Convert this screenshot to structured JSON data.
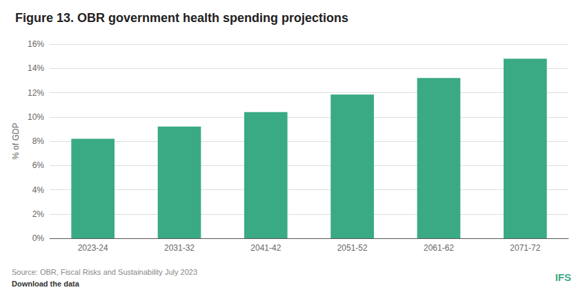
{
  "chart_data": {
    "type": "bar",
    "title": "Figure 13. OBR government health spending projections",
    "categories": [
      "2023-24",
      "2031-32",
      "2041-42",
      "2051-52",
      "2061-62",
      "2071-72"
    ],
    "values": [
      8.2,
      9.2,
      10.4,
      11.85,
      13.2,
      14.8
    ],
    "color": "#3aaa85",
    "ylabel": "% of GDP",
    "ylim": [
      0,
      16
    ],
    "yticks": [
      {
        "value": 0,
        "label": "0%"
      },
      {
        "value": 2,
        "label": "2%"
      },
      {
        "value": 4,
        "label": "4%"
      },
      {
        "value": 6,
        "label": "6%"
      },
      {
        "value": 8,
        "label": "8%"
      },
      {
        "value": 10,
        "label": "10%"
      },
      {
        "value": 12,
        "label": "12%"
      },
      {
        "value": 14,
        "label": "14%"
      },
      {
        "value": 16,
        "label": "16%"
      }
    ],
    "grid": true,
    "annotations": [
      "Source: OBR, Fiscal Risks and Sustainability July 2023",
      "Download the data",
      "IFS"
    ]
  }
}
